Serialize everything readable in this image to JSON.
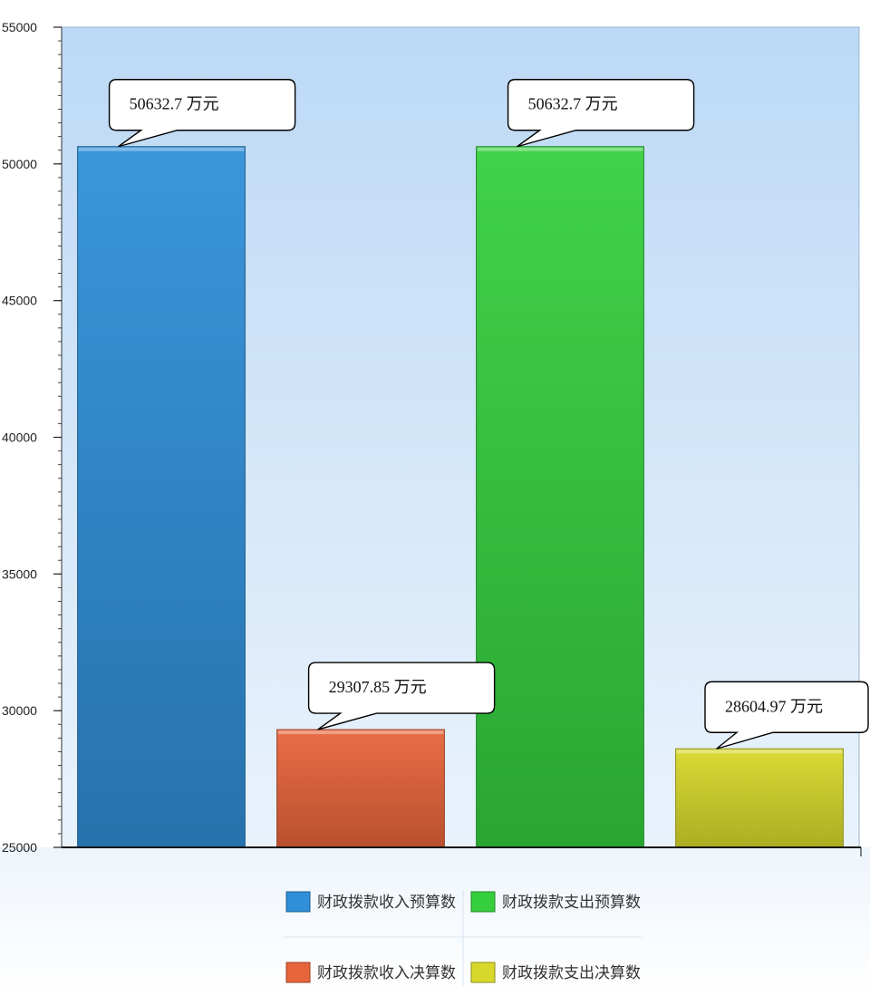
{
  "chart_data": {
    "type": "bar",
    "categories": [
      "财政拨款收入预算数",
      "财政拨款收入决算数",
      "财政拨款支出预算数",
      "财政拨款支出决算数"
    ],
    "values": [
      50632.7,
      29307.85,
      50632.7,
      28604.97
    ],
    "data_labels": [
      "50632.7 万元",
      "29307.85 万元",
      "50632.7 万元",
      "28604.97 万元"
    ],
    "colors": [
      "#2f8fd8",
      "#e8643a",
      "#35cf3d",
      "#d8d82a"
    ],
    "ylim": [
      25000,
      55000
    ],
    "yticks": [
      25000,
      30000,
      35000,
      40000,
      45000,
      50000,
      55000
    ],
    "ytick_labels": [
      "25000",
      "30000",
      "35000",
      "40000",
      "45000",
      "50000",
      "55000"
    ],
    "legend": {
      "placement": "bottom",
      "entries": [
        "财政拨款收入预算数",
        "财政拨款支出预算数",
        "财政拨款收入决算数",
        "财政拨款支出决算数"
      ],
      "entry_series": [
        0,
        2,
        1,
        3
      ]
    },
    "grid": false,
    "title": "",
    "xlabel": "",
    "ylabel": ""
  }
}
